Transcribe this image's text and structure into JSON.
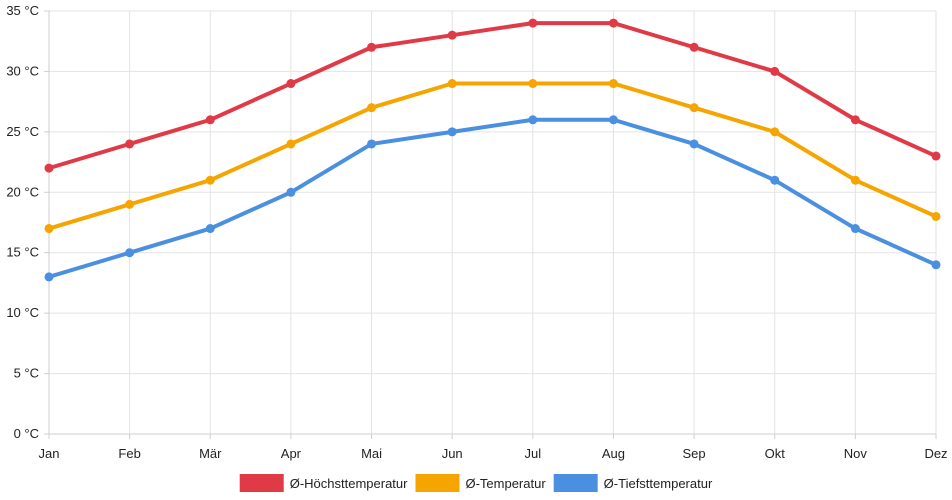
{
  "chart_data": {
    "type": "line",
    "title": "",
    "xlabel": "",
    "ylabel": "",
    "categories": [
      "Jan",
      "Feb",
      "Mär",
      "Apr",
      "Mai",
      "Jun",
      "Jul",
      "Aug",
      "Sep",
      "Okt",
      "Nov",
      "Dez"
    ],
    "ylim": [
      0,
      35
    ],
    "yticks": [
      0,
      5,
      10,
      15,
      20,
      25,
      30,
      35
    ],
    "ytick_labels": [
      "0 °C",
      "5 °C",
      "10 °C",
      "15 °C",
      "20 °C",
      "25 °C",
      "30 °C",
      "35 °C"
    ],
    "grid": true,
    "legend_position": "bottom",
    "series": [
      {
        "name": "Ø-Höchsttemperatur",
        "color": "#e03a47",
        "values": [
          22,
          24,
          26,
          29,
          32,
          33,
          34,
          34,
          32,
          30,
          26,
          23
        ]
      },
      {
        "name": "Ø-Temperatur",
        "color": "#f6a500",
        "values": [
          17,
          19,
          21,
          24,
          27,
          29,
          29,
          29,
          27,
          25,
          21,
          18
        ]
      },
      {
        "name": "Ø-Tiefsttemperatur",
        "color": "#4a8fe0",
        "values": [
          13,
          15,
          17,
          20,
          24,
          25,
          26,
          26,
          24,
          21,
          17,
          14
        ]
      }
    ]
  }
}
